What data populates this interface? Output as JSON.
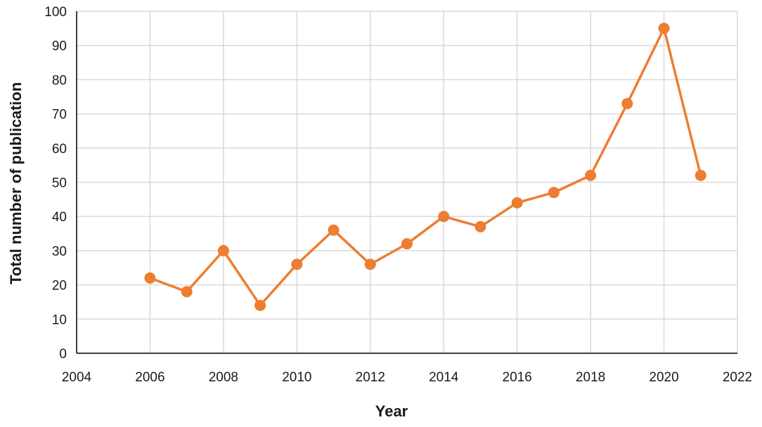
{
  "chart_data": {
    "type": "line",
    "title": "",
    "xlabel": "Year",
    "ylabel": "Total number of publication",
    "xlim": [
      2004,
      2022
    ],
    "ylim": [
      0,
      100
    ],
    "x_ticks": [
      2004,
      2006,
      2008,
      2010,
      2012,
      2014,
      2016,
      2018,
      2020,
      2022
    ],
    "y_ticks": [
      0,
      10,
      20,
      30,
      40,
      50,
      60,
      70,
      80,
      90,
      100
    ],
    "grid": true,
    "legend": false,
    "series": [
      {
        "color": "#ED7D31",
        "x": [
          2006,
          2007,
          2008,
          2009,
          2010,
          2011,
          2012,
          2013,
          2014,
          2015,
          2016,
          2017,
          2018,
          2019,
          2020,
          2021
        ],
        "y": [
          22,
          18,
          30,
          14,
          26,
          36,
          26,
          32,
          40,
          37,
          44,
          47,
          52,
          73,
          95,
          52
        ]
      }
    ],
    "colors": {
      "grid": "#D9D9D9",
      "axis": "#000000"
    }
  }
}
